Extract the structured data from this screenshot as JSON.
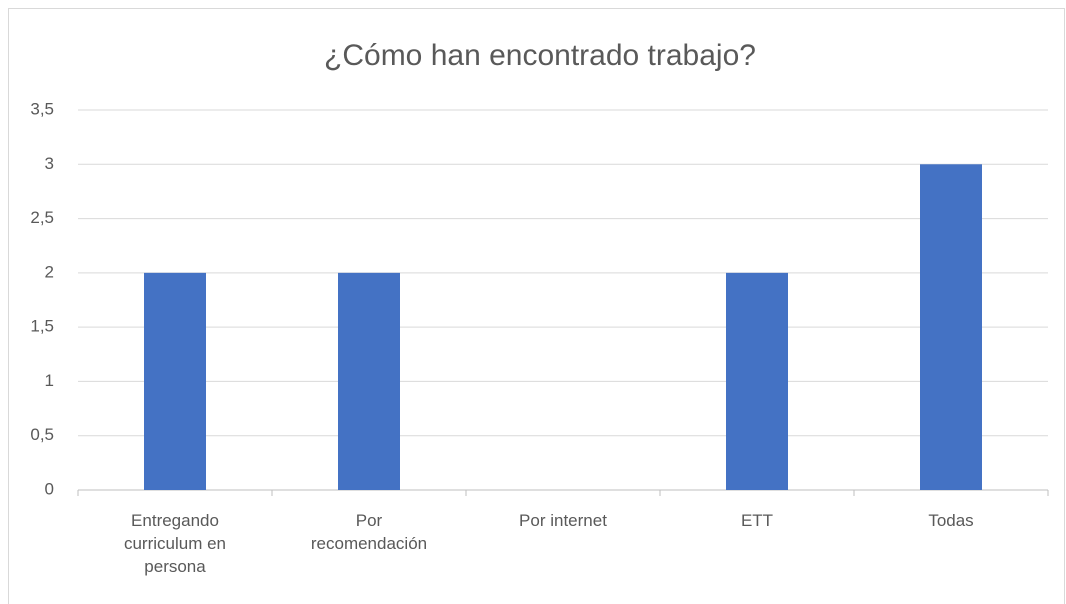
{
  "chart_data": {
    "type": "bar",
    "title": "¿Cómo han encontrado trabajo?",
    "categories": [
      "Entregando curriculum en persona",
      "Por recomendación",
      "Por internet",
      "ETT",
      "Todas"
    ],
    "values": [
      2,
      2,
      0,
      2,
      3
    ],
    "color": "#4472c4",
    "ylim": [
      0,
      3.5
    ],
    "yticks": [
      0,
      {
        "value": 0.5,
        "label": "0,5"
      },
      1,
      {
        "value": 1.5,
        "label": "1,5"
      },
      2,
      {
        "value": 2.5,
        "label": "2,5"
      },
      3,
      {
        "value": 3.5,
        "label": "3,5"
      }
    ],
    "grid": true
  }
}
